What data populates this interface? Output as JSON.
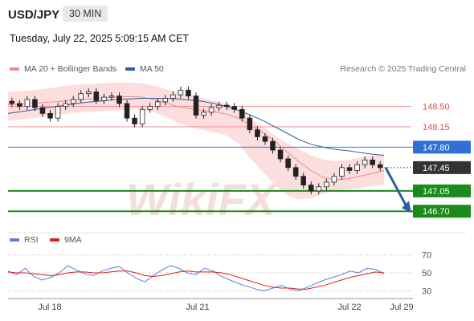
{
  "header": {
    "symbol": "USD/JPY",
    "timeframe": "30 MIN",
    "timestamp": "Tuesday, July 22, 2025 5:09:15 AM CET"
  },
  "legend": {
    "ma20_label": "MA 20 + Bollinger Bands",
    "ma20_color": "#f08c8c",
    "ma50_label": "MA 50",
    "ma50_color": "#2f5f9e",
    "credit": "Research © 2025 Trading Central"
  },
  "rsi_legend": {
    "rsi_label": "RSI",
    "rsi_color": "#5b7fd6",
    "ma_label": "9MA",
    "ma_color": "#d91e1e"
  },
  "watermark": "WikiFX",
  "chart_data": [
    {
      "type": "line",
      "title": "",
      "price_scale": [
        146.4,
        148.95
      ],
      "x_ticks": [
        "Jul 18",
        "Jul 21",
        "Jul 22",
        "Jul 29"
      ],
      "levels": [
        {
          "value": 148.5,
          "label": "148.50",
          "kind": "resistance",
          "color": "#f08c8c"
        },
        {
          "value": 148.15,
          "label": "148.15",
          "kind": "resistance",
          "color": "#f08c8c"
        },
        {
          "value": 147.8,
          "label": "147.80",
          "kind": "pivot",
          "color": "#2f6fd6"
        },
        {
          "value": 147.45,
          "label": "147.45",
          "kind": "last",
          "color": "#333333"
        },
        {
          "value": 147.05,
          "label": "147.05",
          "kind": "support",
          "color": "#1a8a1a"
        },
        {
          "value": 146.7,
          "label": "146.70",
          "kind": "support",
          "color": "#1a8a1a"
        }
      ],
      "series": [
        {
          "name": "MA 20",
          "values": [
            148.53,
            148.54,
            148.55,
            148.57,
            148.58,
            148.6,
            148.62,
            148.63,
            148.65,
            148.66,
            148.67,
            148.66,
            148.62,
            148.56,
            148.5,
            148.46,
            148.43,
            148.41,
            148.37,
            148.3,
            148.18,
            148.05,
            147.9,
            147.72,
            147.55,
            147.4,
            147.28,
            147.24,
            147.26,
            147.3,
            147.35,
            147.4
          ]
        },
        {
          "name": "MA 50",
          "values": [
            148.38,
            148.41,
            148.44,
            148.47,
            148.5,
            148.53,
            148.56,
            148.58,
            148.6,
            148.62,
            148.63,
            148.64,
            148.64,
            148.64,
            148.63,
            148.61,
            148.59,
            148.55,
            148.5,
            148.43,
            148.35,
            148.26,
            148.15,
            148.04,
            147.93,
            147.85,
            147.8,
            147.76,
            147.74,
            147.71,
            147.68,
            147.66
          ]
        },
        {
          "name": "BB upper",
          "values": [
            148.75,
            148.76,
            148.78,
            148.8,
            148.83,
            148.86,
            148.88,
            148.89,
            148.9,
            148.91,
            148.91,
            148.9,
            148.86,
            148.8,
            148.74,
            148.69,
            148.64,
            148.6,
            148.55,
            148.45,
            148.3,
            148.15,
            148.0,
            147.87,
            147.76,
            147.66,
            147.59,
            147.56,
            147.58,
            147.62,
            147.66,
            147.69
          ]
        },
        {
          "name": "BB lower",
          "values": [
            148.25,
            148.27,
            148.3,
            148.33,
            148.35,
            148.38,
            148.4,
            148.41,
            148.42,
            148.43,
            148.45,
            148.45,
            148.4,
            148.32,
            148.22,
            148.15,
            148.1,
            148.06,
            148.0,
            147.86,
            147.6,
            147.38,
            147.15,
            146.98,
            146.9,
            146.92,
            147.0,
            147.05,
            147.08,
            147.1,
            147.13,
            147.16
          ]
        },
        {
          "name": "price",
          "values": [
            148.55,
            148.5,
            148.62,
            148.48,
            148.38,
            148.3,
            148.5,
            148.55,
            148.62,
            148.72,
            148.75,
            148.6,
            148.66,
            148.68,
            148.55,
            148.3,
            148.2,
            148.45,
            148.5,
            148.58,
            148.64,
            148.7,
            148.78,
            148.68,
            148.35,
            148.4,
            148.48,
            148.52,
            148.5,
            148.45,
            148.3,
            148.1,
            147.98,
            147.9,
            147.75,
            147.6,
            147.45,
            147.3,
            147.15,
            147.05,
            147.12,
            147.2,
            147.3,
            147.45,
            147.4,
            147.5,
            147.58,
            147.5,
            147.45
          ]
        }
      ],
      "forecast": {
        "from": 147.45,
        "to": 146.7
      }
    },
    {
      "type": "line",
      "title": "",
      "ylim": [
        25,
        75
      ],
      "y_ticks": [
        "70",
        "50",
        "30"
      ],
      "series": [
        {
          "name": "RSI",
          "values": [
            52,
            48,
            55,
            46,
            42,
            45,
            50,
            58,
            53,
            49,
            47,
            52,
            55,
            57,
            50,
            44,
            40,
            47,
            53,
            58,
            55,
            50,
            48,
            55,
            52,
            46,
            42,
            38,
            35,
            32,
            30,
            33,
            36,
            32,
            30,
            34,
            38,
            42,
            45,
            48,
            52,
            50,
            55,
            54,
            49
          ]
        },
        {
          "name": "9MA",
          "values": [
            51,
            50,
            50,
            49,
            48,
            47,
            48,
            50,
            51,
            51,
            50,
            50,
            51,
            52,
            52,
            50,
            47,
            46,
            47,
            49,
            51,
            52,
            51,
            51,
            51,
            50,
            48,
            45,
            42,
            39,
            36,
            34,
            33,
            33,
            32,
            32,
            34,
            36,
            39,
            42,
            45,
            47,
            49,
            51,
            50
          ]
        }
      ]
    }
  ]
}
